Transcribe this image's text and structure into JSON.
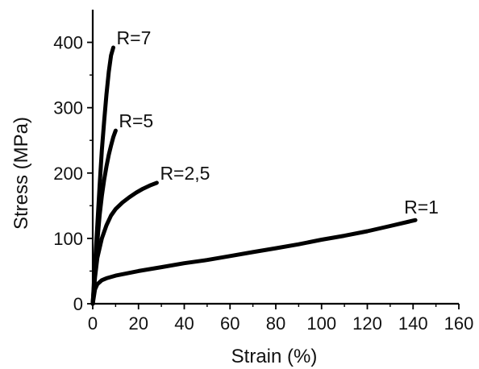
{
  "chart_data": {
    "type": "line",
    "title": "",
    "xlabel": "Strain (%)",
    "ylabel": "Stress (MPa)",
    "xlim": [
      0,
      160
    ],
    "ylim": [
      0,
      450
    ],
    "x_ticks": [
      0,
      20,
      40,
      60,
      80,
      100,
      120,
      140,
      160
    ],
    "y_ticks": [
      0,
      100,
      200,
      300,
      400
    ],
    "x_tick_labels": [
      "0",
      "20",
      "40",
      "60",
      "80",
      "100",
      "120",
      "140",
      "160"
    ],
    "y_tick_labels": [
      "0",
      "100",
      "200",
      "300",
      "400"
    ],
    "grid": false,
    "legend": "none",
    "line_color": "#000000",
    "series": [
      {
        "label": "R=7",
        "x": [
          0,
          1,
          2,
          3,
          4,
          5,
          6,
          7,
          8,
          9
        ],
        "y": [
          0,
          60,
          120,
          180,
          235,
          280,
          320,
          355,
          380,
          392
        ]
      },
      {
        "label": "R=5",
        "x": [
          0,
          1,
          2,
          3,
          4,
          5,
          6,
          7,
          8,
          9,
          10
        ],
        "y": [
          0,
          50,
          95,
          135,
          165,
          190,
          210,
          228,
          242,
          255,
          265
        ]
      },
      {
        "label": "R=2,5",
        "x": [
          0,
          1,
          2,
          4,
          6,
          8,
          10,
          13,
          16,
          19,
          22,
          25,
          28
        ],
        "y": [
          0,
          40,
          70,
          100,
          120,
          135,
          145,
          155,
          163,
          170,
          176,
          181,
          185
        ]
      },
      {
        "label": "R=1",
        "x": [
          0,
          1,
          2,
          4,
          6,
          10,
          20,
          30,
          40,
          50,
          60,
          70,
          80,
          90,
          100,
          110,
          120,
          130,
          141
        ],
        "y": [
          0,
          22,
          30,
          36,
          39,
          43,
          50,
          56,
          62,
          67,
          73,
          79,
          85,
          91,
          98,
          104,
          111,
          119,
          128
        ]
      }
    ]
  }
}
